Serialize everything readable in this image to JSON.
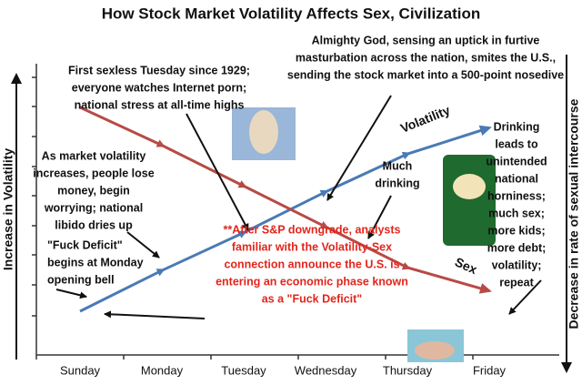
{
  "chart_data": {
    "type": "line",
    "title": "How Stock Market Volatility Affects Sex, Civilization",
    "y_label": "Increase in Volatility",
    "y2_label": "Decrease in rate of sexual intercourse",
    "categories": [
      "Sunday",
      "Monday",
      "Tuesday",
      "Wednesday",
      "Thursday",
      "Friday"
    ],
    "ylim": [
      0,
      100
    ],
    "series": [
      {
        "name": "Volatility",
        "color": "#4a7ab5",
        "values": [
          15,
          29,
          42,
          56,
          69,
          78
        ]
      },
      {
        "name": "Sex",
        "color": "#b84a45",
        "values": [
          85,
          72,
          58,
          44,
          30,
          22
        ]
      }
    ],
    "annotations": [
      {
        "lines": [
          "First sexless Tuesday since 1929;",
          "everyone watches Internet porn;",
          "national stress at all-time highs"
        ]
      },
      {
        "lines": [
          "Almighty God, sensing an uptick in furtive",
          "masturbation across the nation, smites the U.S.,",
          "sending the stock market into a 500-point nosedive"
        ]
      },
      {
        "lines": [
          "As market volatility",
          "increases, people lose",
          "money, begin",
          "worrying; national",
          "libido dries up"
        ]
      },
      {
        "lines": [
          "\"Fuck Deficit\"",
          "begins at Monday",
          "opening bell"
        ]
      },
      {
        "lines": [
          "Much",
          "drinking"
        ]
      },
      {
        "lines": [
          "Drinking",
          "leads to",
          "unintended",
          "national",
          "horniness;",
          "much sex;",
          "more kids;",
          "more debt;",
          "volatility;",
          "repeat"
        ]
      },
      {
        "lines": [
          "**After S&P downgrade, analysts",
          "familiar with the Volatility-Sex",
          "connection announce the U.S. is",
          "entering an economic phase known",
          "as a \"Fuck Deficit\""
        ],
        "color": "#e2261c"
      }
    ]
  }
}
